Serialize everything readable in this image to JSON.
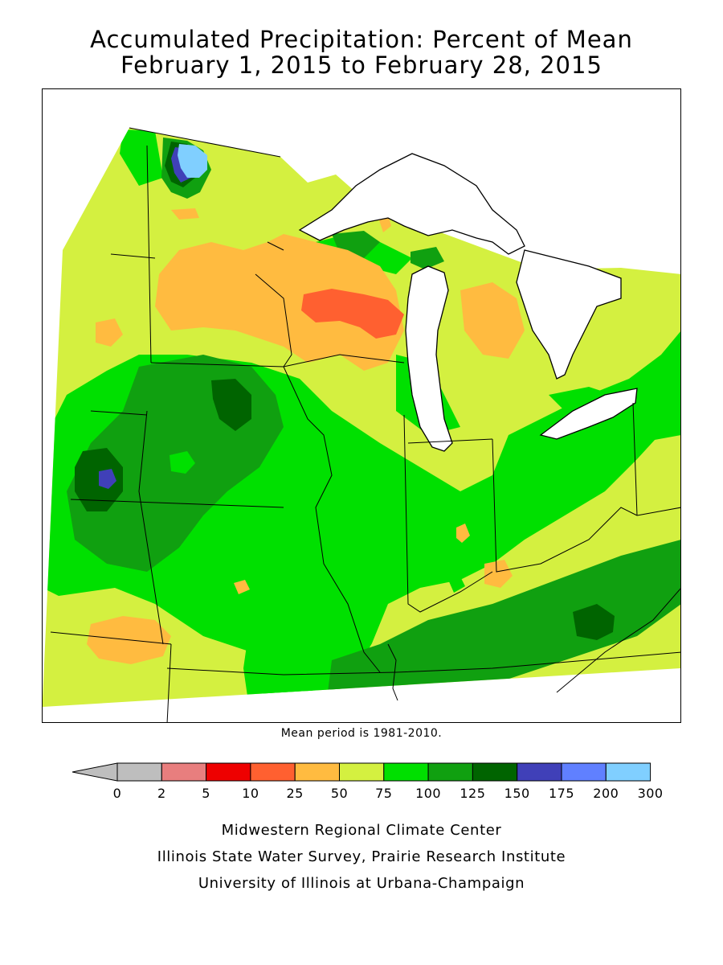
{
  "header": {
    "title_line1": "Accumulated Precipitation: Percent of Mean",
    "title_line2": "February 1, 2015 to February 28, 2015"
  },
  "map": {
    "note": "Mean period is 1981-2010."
  },
  "legend": {
    "bins": [
      {
        "from": 0,
        "to": 2,
        "color": "#bebebe"
      },
      {
        "from": 2,
        "to": 5,
        "color": "#e87e7e"
      },
      {
        "from": 5,
        "to": 10,
        "color": "#ee0000"
      },
      {
        "from": 10,
        "to": 25,
        "color": "#ff6030"
      },
      {
        "from": 25,
        "to": 50,
        "color": "#ffbb40"
      },
      {
        "from": 50,
        "to": 75,
        "color": "#d4f040"
      },
      {
        "from": 75,
        "to": 100,
        "color": "#00e000"
      },
      {
        "from": 100,
        "to": 125,
        "color": "#10a010"
      },
      {
        "from": 125,
        "to": 150,
        "color": "#006400"
      },
      {
        "from": 150,
        "to": 175,
        "color": "#4040b8"
      },
      {
        "from": 175,
        "to": 200,
        "color": "#6080ff"
      },
      {
        "from": 200,
        "to": 300,
        "color": "#80cfff"
      }
    ],
    "labels": [
      "0",
      "2",
      "5",
      "10",
      "25",
      "50",
      "75",
      "100",
      "125",
      "150",
      "175",
      "200",
      "300"
    ],
    "below_min_color": "#bebebe"
  },
  "credits": {
    "line1": "Midwestern Regional Climate Center",
    "line2": "Illinois State Water Survey, Prairie Research Institute",
    "line3": "University of Illinois at Urbana-Champaign"
  }
}
